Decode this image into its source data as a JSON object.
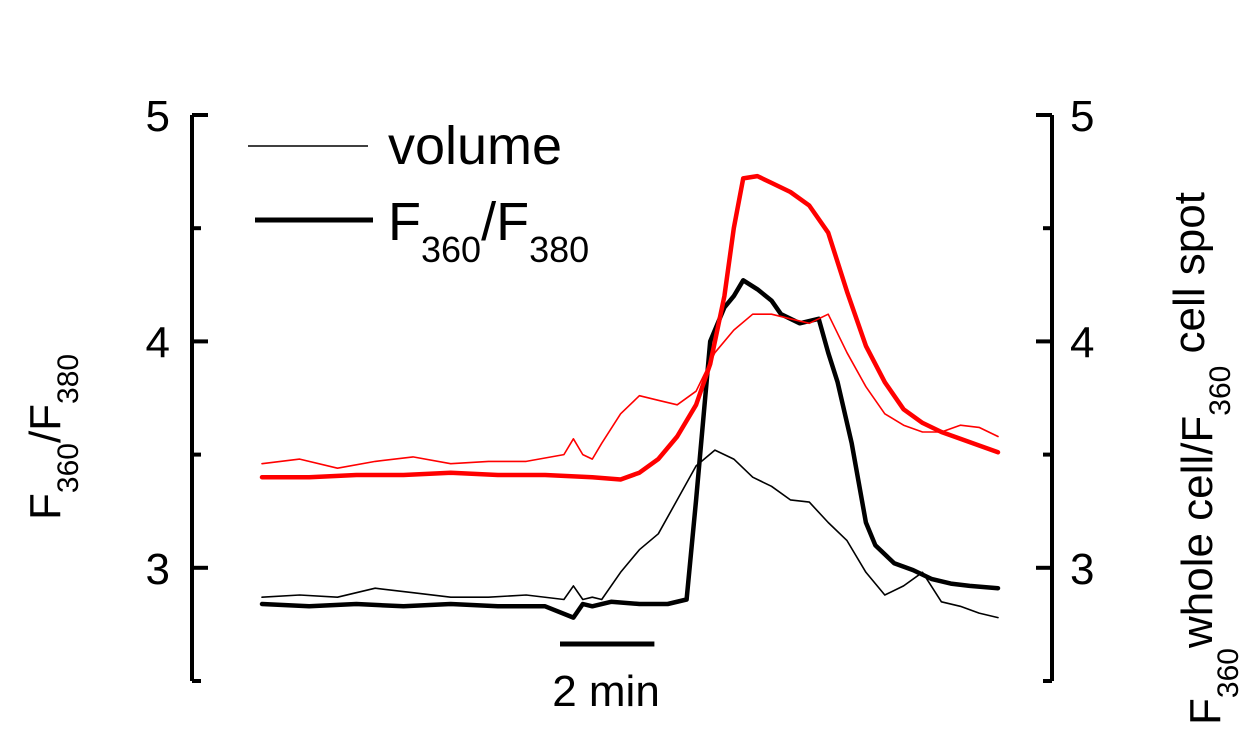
{
  "chart_data": {
    "type": "line",
    "title": "",
    "xlabel": "",
    "y_axis_left": {
      "label_base": "F",
      "label_sub1": "360",
      "label_mid": "/F",
      "label_sub2": "380",
      "ylim": [
        2.5,
        5.0
      ],
      "ticks": [
        3,
        4,
        5
      ],
      "tick_labels": [
        "3",
        "4",
        "5"
      ]
    },
    "y_axis_right": {
      "label_base": "F",
      "label_sub1": "360",
      "label_mid": "whole cell/F",
      "label_sub2": "360",
      "label_tail": " cell spot",
      "ylim": [
        2.5,
        5.0
      ],
      "ticks": [
        3,
        4,
        5
      ],
      "tick_labels": [
        "3",
        "4",
        "5"
      ]
    },
    "x_unit": "min",
    "x_range": [
      0,
      15.6
    ],
    "scale_bar": {
      "length": 2,
      "label": "2 min"
    },
    "legend": {
      "items": [
        {
          "style": "thin",
          "text": "volume"
        },
        {
          "style": "thick",
          "base": "F",
          "sub1": "360",
          "mid": "/F",
          "sub2": "380"
        }
      ]
    },
    "colors": {
      "black": "#000000",
      "red": "#ff0000"
    },
    "series": [
      {
        "color": "#000000",
        "weight": "thin",
        "x": [
          0,
          0.8,
          1.6,
          2.4,
          3.2,
          4.0,
          4.8,
          5.6,
          6.4,
          6.6,
          6.8,
          7.0,
          7.2,
          7.6,
          8.0,
          8.4,
          8.8,
          9.2,
          9.6,
          10.0,
          10.4,
          10.8,
          11.2,
          11.6,
          12.0,
          12.4,
          12.8,
          13.2,
          13.6,
          14.0,
          14.4,
          14.8,
          15.2,
          15.6
        ],
        "y": [
          2.87,
          2.88,
          2.87,
          2.91,
          2.89,
          2.87,
          2.87,
          2.88,
          2.86,
          2.92,
          2.86,
          2.87,
          2.86,
          2.98,
          3.08,
          3.15,
          3.3,
          3.45,
          3.52,
          3.48,
          3.4,
          3.36,
          3.3,
          3.29,
          3.2,
          3.12,
          2.98,
          2.88,
          2.92,
          2.98,
          2.85,
          2.83,
          2.8,
          2.78
        ]
      },
      {
        "color": "#000000",
        "weight": "thick",
        "x": [
          0,
          1.0,
          2.0,
          3.0,
          4.0,
          5.0,
          6.0,
          6.6,
          6.8,
          7.0,
          7.4,
          8.0,
          8.6,
          9.0,
          9.2,
          9.5,
          9.8,
          10.0,
          10.2,
          10.5,
          10.8,
          11.0,
          11.4,
          11.8,
          12.0,
          12.2,
          12.5,
          12.8,
          13.0,
          13.4,
          13.8,
          14.2,
          14.6,
          15.0,
          15.6
        ],
        "y": [
          2.84,
          2.83,
          2.84,
          2.83,
          2.84,
          2.83,
          2.83,
          2.78,
          2.84,
          2.83,
          2.85,
          2.84,
          2.84,
          2.86,
          3.3,
          4.0,
          4.15,
          4.2,
          4.27,
          4.23,
          4.18,
          4.12,
          4.08,
          4.1,
          3.95,
          3.82,
          3.55,
          3.2,
          3.1,
          3.02,
          2.99,
          2.95,
          2.93,
          2.92,
          2.91
        ]
      },
      {
        "color": "#ff0000",
        "weight": "thin",
        "x": [
          0,
          0.8,
          1.6,
          2.4,
          3.2,
          4.0,
          4.8,
          5.6,
          6.4,
          6.6,
          6.8,
          7.0,
          7.2,
          7.6,
          8.0,
          8.4,
          8.8,
          9.2,
          9.6,
          10.0,
          10.4,
          10.8,
          11.2,
          11.6,
          12.0,
          12.4,
          12.8,
          13.2,
          13.6,
          14.0,
          14.4,
          14.8,
          15.2,
          15.6
        ],
        "y": [
          3.46,
          3.48,
          3.44,
          3.47,
          3.49,
          3.46,
          3.47,
          3.47,
          3.5,
          3.57,
          3.5,
          3.48,
          3.55,
          3.68,
          3.76,
          3.74,
          3.72,
          3.78,
          3.95,
          4.05,
          4.12,
          4.12,
          4.1,
          4.08,
          4.12,
          3.95,
          3.8,
          3.68,
          3.63,
          3.6,
          3.6,
          3.63,
          3.62,
          3.58
        ]
      },
      {
        "color": "#ff0000",
        "weight": "thick",
        "x": [
          0,
          1.0,
          2.0,
          3.0,
          4.0,
          5.0,
          6.0,
          7.0,
          7.6,
          8.0,
          8.4,
          8.8,
          9.2,
          9.5,
          9.8,
          10.0,
          10.2,
          10.5,
          10.8,
          11.2,
          11.6,
          12.0,
          12.4,
          12.8,
          13.2,
          13.6,
          14.0,
          14.4,
          14.8,
          15.2,
          15.6
        ],
        "y": [
          3.4,
          3.4,
          3.41,
          3.41,
          3.42,
          3.41,
          3.41,
          3.4,
          3.39,
          3.42,
          3.48,
          3.58,
          3.72,
          3.9,
          4.2,
          4.5,
          4.72,
          4.73,
          4.7,
          4.66,
          4.6,
          4.48,
          4.22,
          3.98,
          3.82,
          3.7,
          3.64,
          3.6,
          3.57,
          3.54,
          3.51
        ]
      }
    ]
  }
}
